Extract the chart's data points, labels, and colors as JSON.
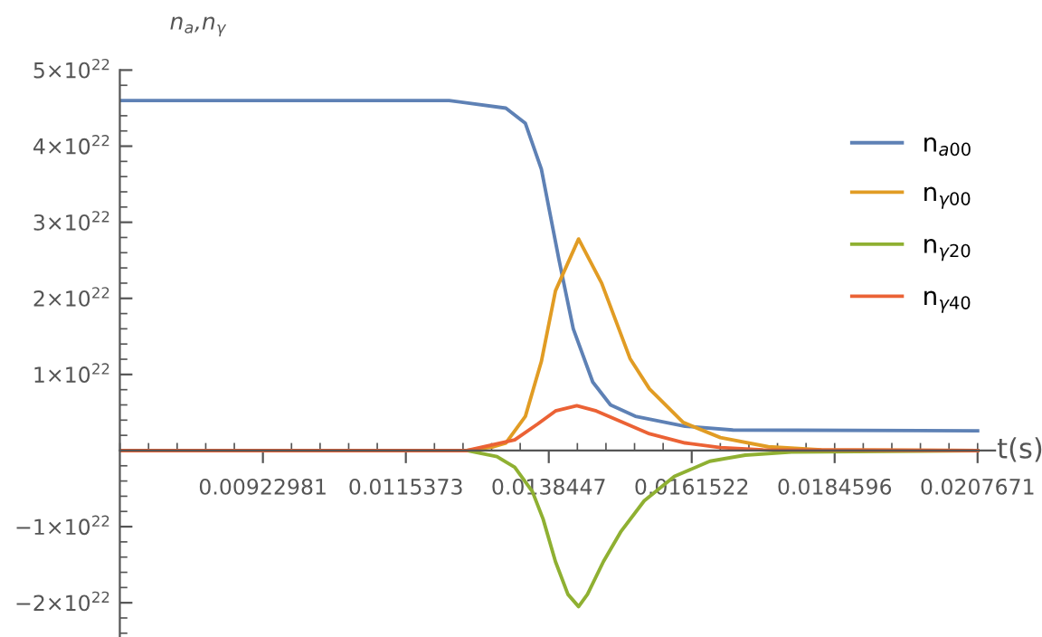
{
  "chart_data": {
    "type": "line",
    "xlabel": "t(s)",
    "ylabel": "n$_{a}$,n$_{γ}$",
    "xlim": [
      0.00692,
      0.02105
    ],
    "ylim": [
      -2.45e+22,
      5e+22
    ],
    "xticks": [
      0.00922981,
      0.0115373,
      0.0138447,
      0.0161522,
      0.0184596,
      0.0207671
    ],
    "yticks": [
      {
        "value": -2e+22,
        "label": "−2×10$^{22}$"
      },
      {
        "value": -1e+22,
        "label": "−1×10$^{22}$"
      },
      {
        "value": 1e+22,
        "label": "1×10$^{22}$"
      },
      {
        "value": 2e+22,
        "label": "2×10$^{22}$"
      },
      {
        "value": 3e+22,
        "label": "3×10$^{22}$"
      },
      {
        "value": 4e+22,
        "label": "4×10$^{22}$"
      },
      {
        "value": 5e+22,
        "label": "5×10$^{22}$"
      }
    ],
    "legend": "top right",
    "grid": false,
    "marker": "none",
    "line_style": "solid",
    "series": [
      {
        "name": "n$_{a00}$",
        "color": "#5e81b5",
        "x": [
          0.00692,
          0.012236,
          0.013152,
          0.013467,
          0.013725,
          0.014011,
          0.01424,
          0.014555,
          0.014841,
          0.015242,
          0.016044,
          0.016817,
          0.0207671
        ],
        "values": [
          4.6e+22,
          4.6e+22,
          4.5e+22,
          4.3e+22,
          3.7e+22,
          2.5e+22,
          1.6e+22,
          9e+21,
          6e+21,
          4.5e+21,
          3.2e+21,
          2.7e+21,
          2.6e+21
        ]
      },
      {
        "name": "n$_{γ00}$",
        "color": "#e19c24",
        "x": [
          0.00692,
          0.012522,
          0.012952,
          0.013152,
          0.013467,
          0.013725,
          0.013953,
          0.014326,
          0.014698,
          0.015156,
          0.015471,
          0.016015,
          0.016616,
          0.017389,
          0.018248,
          0.0207671
        ],
        "values": [
          0,
          0,
          5e+20,
          1e+21,
          4.5e+21,
          1.17e+22,
          2.1e+22,
          2.78e+22,
          2.2e+22,
          1.21e+22,
          8.1e+21,
          3.7e+21,
          1.7e+21,
          5e+20,
          1e+20,
          0
        ]
      },
      {
        "name": "n$_{γ20}$",
        "color": "#8fb032",
        "x": [
          0.00692,
          0.012522,
          0.013009,
          0.013295,
          0.013581,
          0.013753,
          0.013953,
          0.014154,
          0.014326,
          0.014469,
          0.014726,
          0.015013,
          0.015385,
          0.015872,
          0.016445,
          0.017017,
          0.017761,
          0.0207671
        ],
        "values": [
          0,
          0,
          -8e+20,
          -2.2e+21,
          -5.4e+21,
          -9e+21,
          -1.46e+22,
          -1.89e+22,
          -2.05e+22,
          -1.89e+22,
          -1.46e+22,
          -1.06e+22,
          -6.6e+21,
          -3.4e+21,
          -1.4e+21,
          -6e+20,
          -2e+20,
          0
        ]
      },
      {
        "name": "n$_{γ40}$",
        "color": "#eb6235",
        "x": [
          0.00692,
          0.012522,
          0.013295,
          0.013667,
          0.013953,
          0.014297,
          0.014612,
          0.015013,
          0.015471,
          0.016044,
          0.016616,
          0.017303,
          0.0207671
        ],
        "values": [
          0,
          0,
          1.4e+21,
          3.5e+21,
          5.2e+21,
          5.9e+21,
          5.2e+21,
          3.8e+21,
          2.2e+21,
          1e+21,
          4e+20,
          1e+20,
          0
        ]
      }
    ]
  }
}
